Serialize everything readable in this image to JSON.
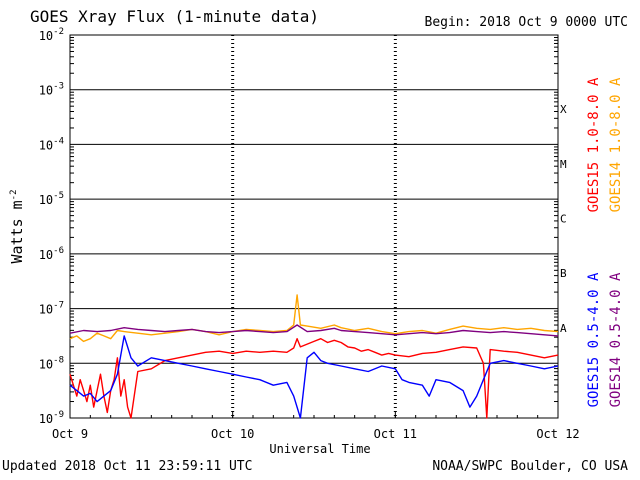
{
  "header": {
    "title": "GOES Xray Flux (1-minute data)",
    "begin": "Begin:  2018 Oct 9 0000 UTC"
  },
  "footer": {
    "updated": "Updated 2018 Oct 11 23:59:11 UTC",
    "credit": "NOAA/SWPC Boulder, CO USA"
  },
  "colors": {
    "goes15_long": "#ff0000",
    "goes14_long": "#ffa500",
    "goes15_short": "#0000ff",
    "goes14_short": "#800080",
    "grid": "#000000"
  },
  "chart_data": {
    "type": "line",
    "title": "GOES Xray Flux (1-minute data)",
    "xlabel": "Universal Time",
    "ylabel_base": "Watts m",
    "ylabel_exp": "-2",
    "yscale": "log",
    "ylim": [
      1e-09,
      0.01
    ],
    "xlim": [
      0,
      72
    ],
    "x_unit": "hours since 2018 Oct 9 0000 UTC",
    "x_ticks": [
      {
        "x": 0,
        "label": "Oct 9"
      },
      {
        "x": 24,
        "label": "Oct 10"
      },
      {
        "x": 48,
        "label": "Oct 11"
      },
      {
        "x": 72,
        "label": "Oct 12"
      }
    ],
    "y_ticks": [
      {
        "exp": -9,
        "label": "10",
        "sup": "-9"
      },
      {
        "exp": -8,
        "label": "10",
        "sup": "-8"
      },
      {
        "exp": -7,
        "label": "10",
        "sup": "-7"
      },
      {
        "exp": -6,
        "label": "10",
        "sup": "-6"
      },
      {
        "exp": -5,
        "label": "10",
        "sup": "-5"
      },
      {
        "exp": -4,
        "label": "10",
        "sup": "-4"
      },
      {
        "exp": -3,
        "label": "10",
        "sup": "-3"
      },
      {
        "exp": -2,
        "label": "10",
        "sup": "-2"
      }
    ],
    "flare_classes": [
      {
        "label": "A",
        "exp": -8
      },
      {
        "label": "B",
        "exp": -7
      },
      {
        "label": "C",
        "exp": -6
      },
      {
        "label": "M",
        "exp": -5
      },
      {
        "label": "X",
        "exp": -4
      }
    ],
    "legend": [
      {
        "name": "GOES15 1.0-8.0 A",
        "color": "#ff0000"
      },
      {
        "name": "GOES14 1.0-8.0 A",
        "color": "#ffa500"
      },
      {
        "name": "GOES15 0.5-4.0 A",
        "color": "#0000ff"
      },
      {
        "name": "GOES14 0.5-4.0 A",
        "color": "#800080"
      }
    ],
    "series": [
      {
        "name": "GOES14 1.0-8.0 A",
        "color": "#ffa500",
        "x": [
          0,
          1,
          2,
          3,
          4,
          5,
          6,
          7,
          8,
          10,
          12,
          14,
          16,
          18,
          20,
          22,
          24,
          26,
          28,
          30,
          32,
          33,
          33.5,
          34,
          35,
          37,
          39,
          40,
          42,
          44,
          46,
          48,
          50,
          52,
          54,
          56,
          58,
          60,
          62,
          64,
          66,
          68,
          70,
          72
        ],
        "log_y": [
          -7.55,
          -7.5,
          -7.6,
          -7.55,
          -7.45,
          -7.5,
          -7.55,
          -7.4,
          -7.42,
          -7.45,
          -7.48,
          -7.45,
          -7.42,
          -7.38,
          -7.42,
          -7.48,
          -7.42,
          -7.38,
          -7.4,
          -7.42,
          -7.4,
          -7.3,
          -6.75,
          -7.3,
          -7.32,
          -7.36,
          -7.3,
          -7.35,
          -7.4,
          -7.36,
          -7.42,
          -7.46,
          -7.42,
          -7.4,
          -7.45,
          -7.38,
          -7.32,
          -7.36,
          -7.38,
          -7.35,
          -7.38,
          -7.36,
          -7.4,
          -7.42
        ]
      },
      {
        "name": "GOES14 0.5-4.0 A",
        "color": "#800080",
        "x": [
          0,
          2,
          4,
          6,
          8,
          10,
          12,
          14,
          16,
          18,
          20,
          22,
          24,
          26,
          28,
          30,
          32,
          33.5,
          35,
          37,
          39,
          40,
          42,
          44,
          46,
          48,
          50,
          52,
          54,
          56,
          58,
          60,
          62,
          64,
          66,
          68,
          70,
          72
        ],
        "log_y": [
          -7.45,
          -7.4,
          -7.42,
          -7.4,
          -7.35,
          -7.38,
          -7.4,
          -7.42,
          -7.4,
          -7.38,
          -7.42,
          -7.44,
          -7.42,
          -7.4,
          -7.42,
          -7.44,
          -7.42,
          -7.3,
          -7.42,
          -7.4,
          -7.36,
          -7.4,
          -7.42,
          -7.44,
          -7.46,
          -7.48,
          -7.46,
          -7.44,
          -7.46,
          -7.44,
          -7.4,
          -7.42,
          -7.44,
          -7.42,
          -7.44,
          -7.46,
          -7.48,
          -7.5
        ]
      },
      {
        "name": "GOES15 1.0-8.0 A",
        "color": "#ff0000",
        "x": [
          0,
          0.5,
          1,
          1.5,
          2,
          2.5,
          3,
          3.5,
          4,
          4.5,
          5,
          5.5,
          6,
          6.5,
          7,
          7.5,
          8,
          8.5,
          9,
          10,
          12,
          14,
          16,
          18,
          20,
          22,
          24,
          26,
          28,
          30,
          32,
          33,
          33.5,
          34,
          35,
          36,
          37,
          38,
          39,
          40,
          41,
          42,
          43,
          44,
          45,
          46,
          47,
          48,
          50,
          52,
          54,
          56,
          58,
          60,
          61,
          61.5,
          62,
          64,
          66,
          68,
          70,
          72
        ],
        "log_y": [
          -8.2,
          -8.4,
          -8.6,
          -8.3,
          -8.5,
          -8.7,
          -8.4,
          -8.8,
          -8.5,
          -8.2,
          -8.6,
          -8.9,
          -8.5,
          -8.3,
          -7.9,
          -8.6,
          -8.3,
          -8.8,
          -9.0,
          -8.15,
          -8.1,
          -7.95,
          -7.9,
          -7.85,
          -7.8,
          -7.78,
          -7.82,
          -7.78,
          -7.8,
          -7.78,
          -7.8,
          -7.72,
          -7.55,
          -7.7,
          -7.65,
          -7.6,
          -7.55,
          -7.62,
          -7.58,
          -7.62,
          -7.7,
          -7.72,
          -7.78,
          -7.75,
          -7.8,
          -7.85,
          -7.82,
          -7.85,
          -7.88,
          -7.82,
          -7.8,
          -7.75,
          -7.7,
          -7.72,
          -8.0,
          -9.0,
          -7.75,
          -7.78,
          -7.8,
          -7.85,
          -7.9,
          -7.85
        ]
      },
      {
        "name": "GOES15 0.5-4.0 A",
        "color": "#0000ff",
        "x": [
          0,
          1,
          2,
          3,
          4,
          5,
          6,
          7,
          8,
          9,
          10,
          12,
          14,
          16,
          18,
          20,
          22,
          24,
          26,
          28,
          30,
          32,
          33,
          34,
          35,
          36,
          37,
          38,
          40,
          42,
          44,
          46,
          48,
          49,
          50,
          52,
          53,
          54,
          56,
          58,
          59,
          60,
          61,
          62,
          64,
          66,
          68,
          70,
          72
        ],
        "log_y": [
          -8.4,
          -8.5,
          -8.6,
          -8.55,
          -8.7,
          -8.6,
          -8.5,
          -8.2,
          -7.5,
          -7.9,
          -8.05,
          -7.9,
          -7.95,
          -8.0,
          -8.05,
          -8.1,
          -8.15,
          -8.2,
          -8.25,
          -8.3,
          -8.4,
          -8.35,
          -8.6,
          -9.0,
          -7.9,
          -7.8,
          -7.95,
          -8.0,
          -8.05,
          -8.1,
          -8.15,
          -8.05,
          -8.1,
          -8.3,
          -8.35,
          -8.4,
          -8.6,
          -8.3,
          -8.35,
          -8.5,
          -8.8,
          -8.6,
          -8.3,
          -8.0,
          -7.95,
          -8.0,
          -8.05,
          -8.1,
          -8.05
        ]
      }
    ]
  }
}
